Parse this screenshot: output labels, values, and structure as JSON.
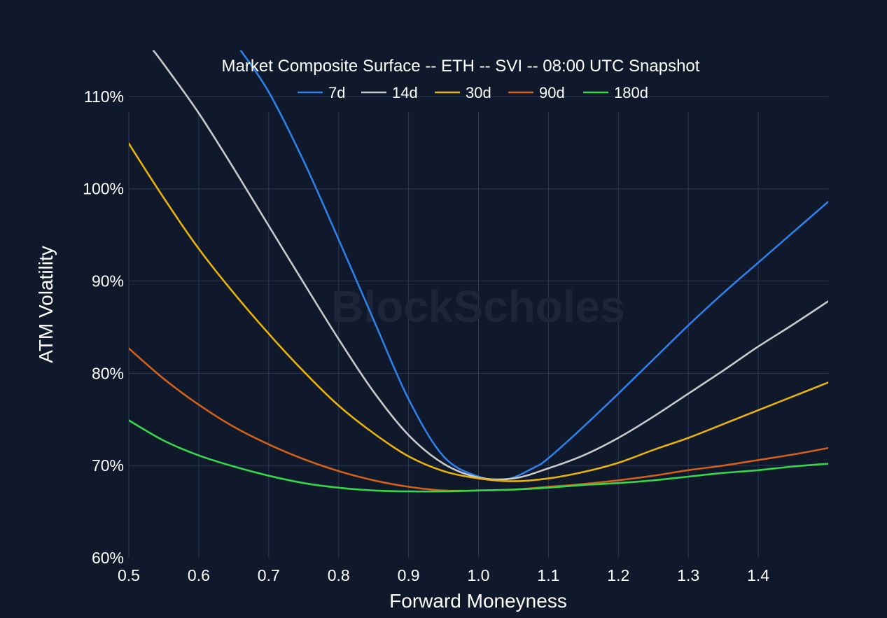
{
  "chart_data": {
    "type": "line",
    "title": "Market Composite Surface -- ETH -- SVI -- 08:00 UTC Snapshot",
    "xlabel": "Forward Moneyness",
    "ylabel": "ATM Volatility",
    "watermark": "BlockScholes",
    "xlim": [
      0.5,
      1.5
    ],
    "ylim": [
      60,
      115
    ],
    "x_ticks": [
      0.5,
      0.6,
      0.7,
      0.8,
      0.9,
      1.0,
      1.1,
      1.2,
      1.3,
      1.4
    ],
    "x_tick_labels": [
      "0.5",
      "0.6",
      "0.7",
      "0.8",
      "0.9",
      "1.0",
      "1.1",
      "1.2",
      "1.3",
      "1.4"
    ],
    "y_ticks": [
      60,
      70,
      80,
      90,
      100,
      110
    ],
    "y_tick_labels": [
      "60%",
      "70%",
      "80%",
      "90%",
      "100%",
      "110%"
    ],
    "grid": true,
    "legend_position": "top-center",
    "background": "#0f192b",
    "series": [
      {
        "name": "7d",
        "color": "#2e7fe8",
        "x": [
          0.66,
          0.7,
          0.75,
          0.8,
          0.85,
          0.9,
          0.95,
          1.0,
          1.04,
          1.08,
          1.1,
          1.15,
          1.2,
          1.25,
          1.3,
          1.35,
          1.4,
          1.45,
          1.5
        ],
        "y": [
          115.0,
          110.5,
          103.0,
          94.5,
          85.8,
          77.2,
          71.0,
          68.8,
          68.5,
          69.8,
          70.8,
          74.2,
          77.8,
          81.5,
          85.2,
          88.7,
          92.0,
          95.3,
          98.6
        ]
      },
      {
        "name": "14d",
        "color": "#c9c9c9",
        "x": [
          0.535,
          0.55,
          0.6,
          0.65,
          0.7,
          0.75,
          0.8,
          0.85,
          0.9,
          0.95,
          1.0,
          1.05,
          1.1,
          1.15,
          1.2,
          1.25,
          1.3,
          1.35,
          1.4,
          1.45,
          1.5
        ],
        "y": [
          115.0,
          113.5,
          108.2,
          102.2,
          96.0,
          89.8,
          83.7,
          78.0,
          73.3,
          70.2,
          68.7,
          68.6,
          69.7,
          71.1,
          73.0,
          75.3,
          77.8,
          80.3,
          82.9,
          85.3,
          87.8
        ]
      },
      {
        "name": "30d",
        "color": "#e8b20c",
        "x": [
          0.5,
          0.55,
          0.6,
          0.65,
          0.7,
          0.75,
          0.8,
          0.85,
          0.9,
          0.95,
          1.0,
          1.05,
          1.1,
          1.15,
          1.2,
          1.25,
          1.3,
          1.35,
          1.4,
          1.45,
          1.5
        ],
        "y": [
          104.9,
          99.0,
          93.5,
          88.7,
          84.3,
          80.2,
          76.5,
          73.5,
          71.0,
          69.4,
          68.6,
          68.3,
          68.6,
          69.3,
          70.3,
          71.7,
          73.0,
          74.5,
          76.0,
          77.5,
          79.0
        ]
      },
      {
        "name": "90d",
        "color": "#d2601a",
        "x": [
          0.5,
          0.55,
          0.6,
          0.65,
          0.7,
          0.75,
          0.8,
          0.85,
          0.9,
          0.95,
          1.0,
          1.05,
          1.1,
          1.15,
          1.2,
          1.25,
          1.3,
          1.35,
          1.4,
          1.45,
          1.5
        ],
        "y": [
          82.7,
          79.4,
          76.6,
          74.2,
          72.3,
          70.7,
          69.4,
          68.4,
          67.7,
          67.3,
          67.3,
          67.4,
          67.7,
          68.0,
          68.4,
          68.9,
          69.5,
          70.0,
          70.6,
          71.2,
          71.9
        ]
      },
      {
        "name": "180d",
        "color": "#37d64a",
        "x": [
          0.5,
          0.55,
          0.6,
          0.65,
          0.7,
          0.75,
          0.8,
          0.85,
          0.9,
          0.95,
          1.0,
          1.05,
          1.1,
          1.15,
          1.2,
          1.25,
          1.3,
          1.35,
          1.4,
          1.45,
          1.5
        ],
        "y": [
          74.9,
          72.7,
          71.1,
          69.9,
          68.9,
          68.1,
          67.6,
          67.3,
          67.2,
          67.2,
          67.3,
          67.4,
          67.6,
          67.9,
          68.1,
          68.4,
          68.8,
          69.2,
          69.5,
          69.9,
          70.2
        ]
      }
    ]
  }
}
